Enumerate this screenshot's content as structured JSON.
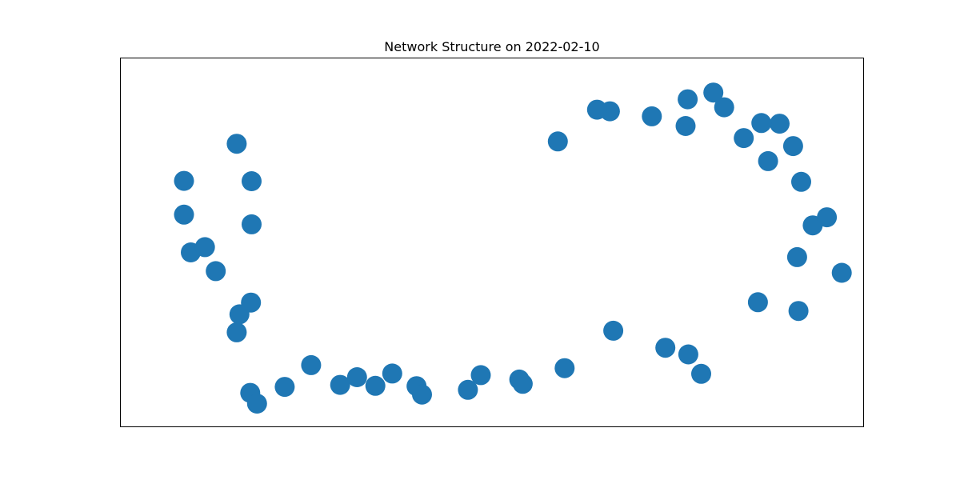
{
  "chart_data": {
    "type": "scatter",
    "title": "Network Structure on 2022-02-10",
    "xlabel": "",
    "ylabel": "",
    "axes_visible": false,
    "grid": false,
    "xlim": [
      0,
      1
    ],
    "ylim": [
      0,
      1
    ],
    "node_color": "#1f77b4",
    "series": [
      {
        "x": [
          0.276,
          0.233,
          0.389,
          0.353,
          0.541,
          0.598,
          0.675,
          0.656,
          0.737,
          0.787,
          0.844,
          0.79,
          0.828,
          0.926,
          0.899,
          0.946,
          0.873,
          0.909,
          0.958,
          0.975,
          0.996,
          0.952,
          1.018,
          0.954,
          0.894,
          0.791,
          0.81,
          0.757,
          0.68,
          0.608,
          0.546,
          0.484,
          0.465,
          0.397,
          0.328,
          0.301,
          0.143,
          0.153,
          0.194,
          0.123,
          0.127,
          0.144,
          0.092,
          0.055,
          0.076,
          0.045,
          0.045,
          0.145,
          0.145,
          0.123
        ],
        "y": [
          0.074,
          0.133,
          0.07,
          0.108,
          0.09,
          0.802,
          0.892,
          0.897,
          0.877,
          0.848,
          0.904,
          0.928,
          0.948,
          0.855,
          0.857,
          0.788,
          0.812,
          0.743,
          0.681,
          0.551,
          0.575,
          0.456,
          0.409,
          0.295,
          0.321,
          0.165,
          0.107,
          0.185,
          0.236,
          0.124,
          0.077,
          0.103,
          0.059,
          0.045,
          0.071,
          0.097,
          0.05,
          0.018,
          0.068,
          0.231,
          0.285,
          0.32,
          0.414,
          0.47,
          0.486,
          0.583,
          0.684,
          0.554,
          0.683,
          0.795
        ]
      }
    ]
  }
}
